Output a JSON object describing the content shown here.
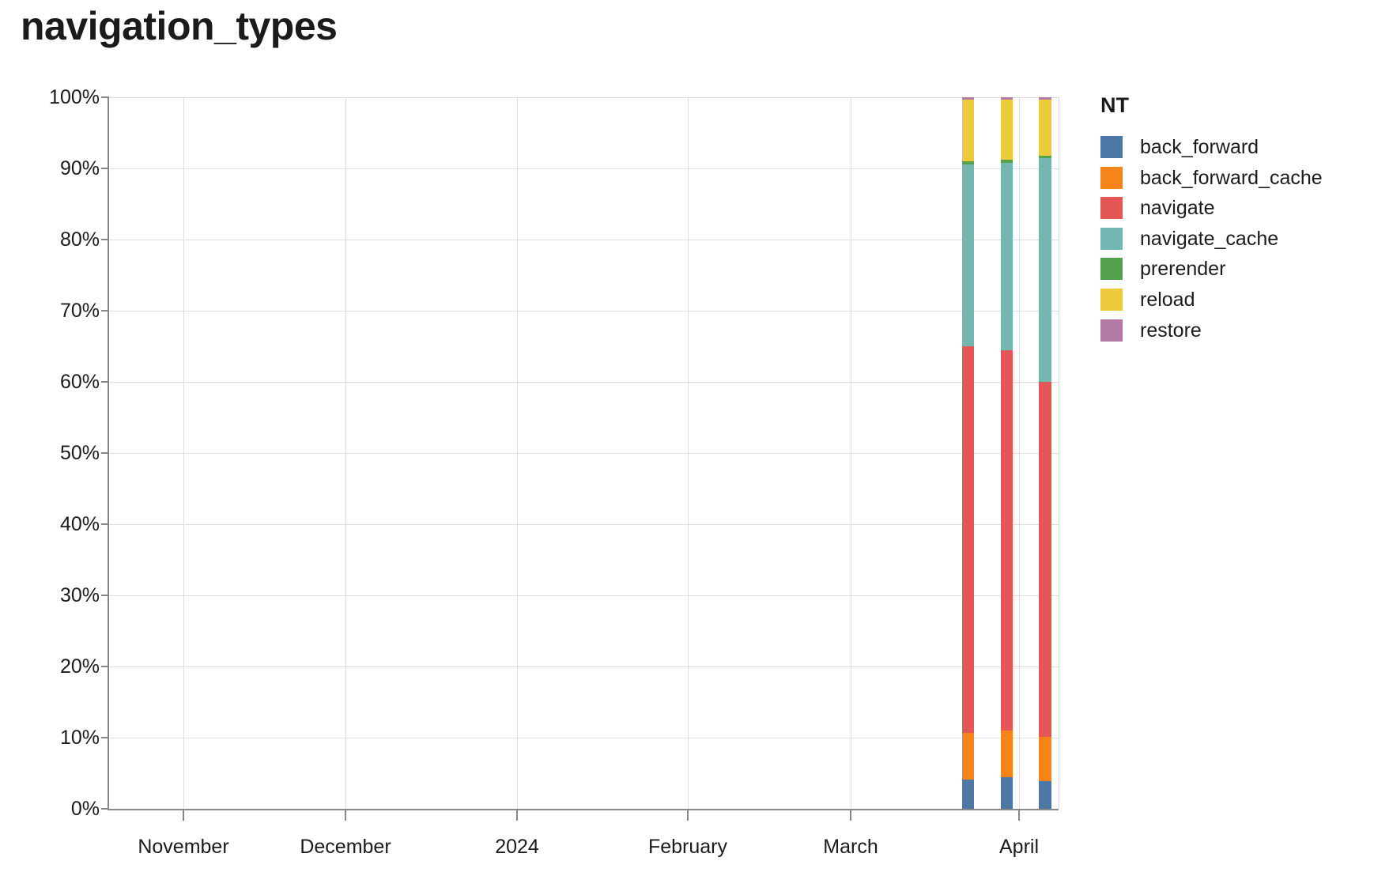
{
  "title": "navigation_types",
  "chart_data": {
    "type": "bar",
    "stacked": true,
    "normalized": "percent",
    "title": "navigation_types",
    "xlabel": "",
    "ylabel": "",
    "grid": true,
    "y_ticks": [
      "0%",
      "10%",
      "20%",
      "30%",
      "40%",
      "50%",
      "60%",
      "70%",
      "80%",
      "90%",
      "100%"
    ],
    "ylim_percent": [
      0,
      100
    ],
    "x_ticks": [
      {
        "label": "November",
        "pos": 0.0783
      },
      {
        "label": "December",
        "pos": 0.249
      },
      {
        "label": "2024",
        "pos": 0.4296
      },
      {
        "label": "February",
        "pos": 0.6095
      },
      {
        "label": "March",
        "pos": 0.781
      },
      {
        "label": "April",
        "pos": 0.958
      }
    ],
    "x_range_estimate": [
      "2023-10-18",
      "2024-04-08"
    ],
    "categories": [
      "2024-03-24",
      "2024-03-31",
      "2024-04-07"
    ],
    "bar_positions": [
      0.9048,
      0.9455,
      0.9859
    ],
    "series": [
      {
        "name": "back_forward",
        "color": "#4C78A8",
        "values": [
          4.1,
          4.4,
          3.9
        ]
      },
      {
        "name": "back_forward_cache",
        "color": "#F58518",
        "values": [
          6.6,
          6.6,
          6.2
        ]
      },
      {
        "name": "navigate",
        "color": "#E45756",
        "values": [
          54.3,
          53.5,
          49.9
        ]
      },
      {
        "name": "navigate_cache",
        "color": "#72B7B2",
        "values": [
          25.6,
          26.3,
          31.4
        ]
      },
      {
        "name": "prerender",
        "color": "#54A24B",
        "values": [
          0.4,
          0.4,
          0.4
        ]
      },
      {
        "name": "reload",
        "color": "#EECA3B",
        "values": [
          8.7,
          8.5,
          7.9
        ]
      },
      {
        "name": "restore",
        "color": "#B279A2",
        "values": [
          0.3,
          0.3,
          0.3
        ]
      }
    ],
    "legend": {
      "title": "NT",
      "position": "right",
      "items": [
        "back_forward",
        "back_forward_cache",
        "navigate",
        "navigate_cache",
        "prerender",
        "reload",
        "restore"
      ]
    },
    "colors": {
      "text": "#1b1b1b",
      "gridline": "#dddddd",
      "axis": "#888888",
      "background": "#ffffff"
    }
  }
}
